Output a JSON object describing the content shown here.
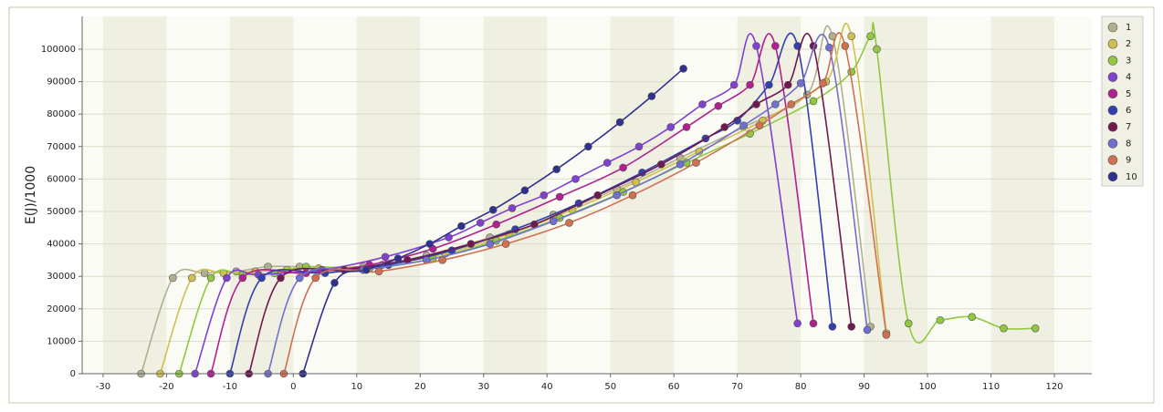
{
  "chart_data": {
    "type": "line",
    "y_label": "E(J)/1000",
    "xlim": [
      -33.3,
      125.9
    ],
    "ylim": [
      0,
      110100
    ],
    "xticks": [
      -30,
      -20,
      -10,
      0,
      10,
      20,
      30,
      40,
      50,
      60,
      70,
      80,
      90,
      100,
      110,
      120
    ],
    "yticks": [
      0,
      10000,
      20000,
      30000,
      40000,
      50000,
      60000,
      70000,
      80000,
      90000,
      100000
    ],
    "grid": true,
    "legend": "right",
    "series": [
      {
        "name": "1",
        "color": "#b0b090",
        "x": [
          -24,
          -19,
          -14,
          -9,
          -4,
          1,
          11,
          21,
          31,
          41,
          51,
          61,
          71,
          81,
          85,
          91
        ],
        "values": [
          0,
          29500,
          31000,
          31500,
          33000,
          33000,
          33000,
          36500,
          42000,
          49000,
          57000,
          66500,
          76000,
          86000,
          104000,
          14500
        ]
      },
      {
        "name": "2",
        "color": "#d0c050",
        "x": [
          -21,
          -16,
          -11,
          -6,
          -1,
          4,
          14,
          24,
          34,
          44,
          54,
          64,
          74,
          84,
          88,
          93.5
        ],
        "values": [
          0,
          29500,
          31000,
          31500,
          32000,
          32500,
          33500,
          37000,
          43000,
          50500,
          59000,
          68500,
          78000,
          90000,
          104000,
          12500
        ]
      },
      {
        "name": "3",
        "color": "#90c840",
        "x": [
          -18,
          -13,
          -8,
          -3,
          2,
          12,
          22,
          32,
          42,
          52,
          62,
          72,
          82,
          88,
          91,
          92,
          97,
          102,
          107,
          112,
          117
        ],
        "values": [
          0,
          29500,
          30500,
          31000,
          33000,
          32500,
          35500,
          41000,
          48000,
          56000,
          65000,
          74000,
          84000,
          93000,
          104000,
          100000,
          15500,
          16500,
          17500,
          14000,
          14000
        ]
      },
      {
        "name": "4",
        "color": "#8040d0",
        "x": [
          -15.5,
          -10.5,
          -5.5,
          4.5,
          14.5,
          24.5,
          29.5,
          34.5,
          39.5,
          44.5,
          49.5,
          54.5,
          59.5,
          64.5,
          69.5,
          73,
          79.5
        ],
        "values": [
          0,
          29500,
          30500,
          32000,
          36000,
          42000,
          46500,
          51000,
          55000,
          60000,
          65000,
          70000,
          76000,
          83000,
          89000,
          101000,
          15500
        ]
      },
      {
        "name": "5",
        "color": "#b02090",
        "x": [
          -13,
          -8,
          2,
          12,
          22,
          32,
          42,
          52,
          62,
          67,
          72,
          76,
          82
        ],
        "values": [
          0,
          29500,
          31000,
          33500,
          38500,
          46000,
          54500,
          63500,
          76000,
          82500,
          89000,
          101000,
          15500
        ]
      },
      {
        "name": "6",
        "color": "#3040b0",
        "x": [
          -10,
          -5,
          5,
          15,
          25,
          35,
          45,
          55,
          65,
          70,
          75,
          79.5,
          85
        ],
        "values": [
          0,
          29500,
          31000,
          33500,
          38000,
          44500,
          52500,
          62000,
          72500,
          78000,
          89000,
          101000,
          14500
        ]
      },
      {
        "name": "7",
        "color": "#701850",
        "x": [
          -7,
          -2,
          8,
          18,
          28,
          38,
          48,
          58,
          68,
          73,
          78,
          82,
          88
        ],
        "values": [
          0,
          29500,
          32000,
          35000,
          40000,
          46000,
          55000,
          64500,
          76000,
          83000,
          89000,
          101000,
          14500
        ]
      },
      {
        "name": "8",
        "color": "#7070d0",
        "x": [
          -4,
          1,
          11,
          21,
          31,
          41,
          51,
          61,
          71,
          76,
          80,
          84.5,
          90.5
        ],
        "values": [
          0,
          29500,
          32000,
          35000,
          40000,
          47000,
          55000,
          64500,
          76500,
          83000,
          89500,
          100500,
          13500
        ]
      },
      {
        "name": "9",
        "color": "#d07050",
        "x": [
          -1.5,
          3.5,
          13.5,
          23.5,
          33.5,
          43.5,
          53.5,
          63.5,
          73.5,
          78.5,
          83.5,
          87,
          93.5
        ],
        "values": [
          0,
          29500,
          31500,
          35000,
          40000,
          46500,
          55000,
          65000,
          76500,
          83000,
          89500,
          101000,
          12000
        ]
      },
      {
        "name": "10",
        "color": "#303090",
        "x": [
          1.5,
          6.5,
          11.5,
          16.5,
          21.5,
          26.5,
          31.5,
          36.5,
          41.5,
          46.5,
          51.5,
          56.5,
          61.5
        ],
        "values": [
          0,
          28000,
          32000,
          35500,
          40000,
          45500,
          50500,
          56500,
          63000,
          70000,
          77500,
          85500,
          94000
        ]
      }
    ]
  }
}
